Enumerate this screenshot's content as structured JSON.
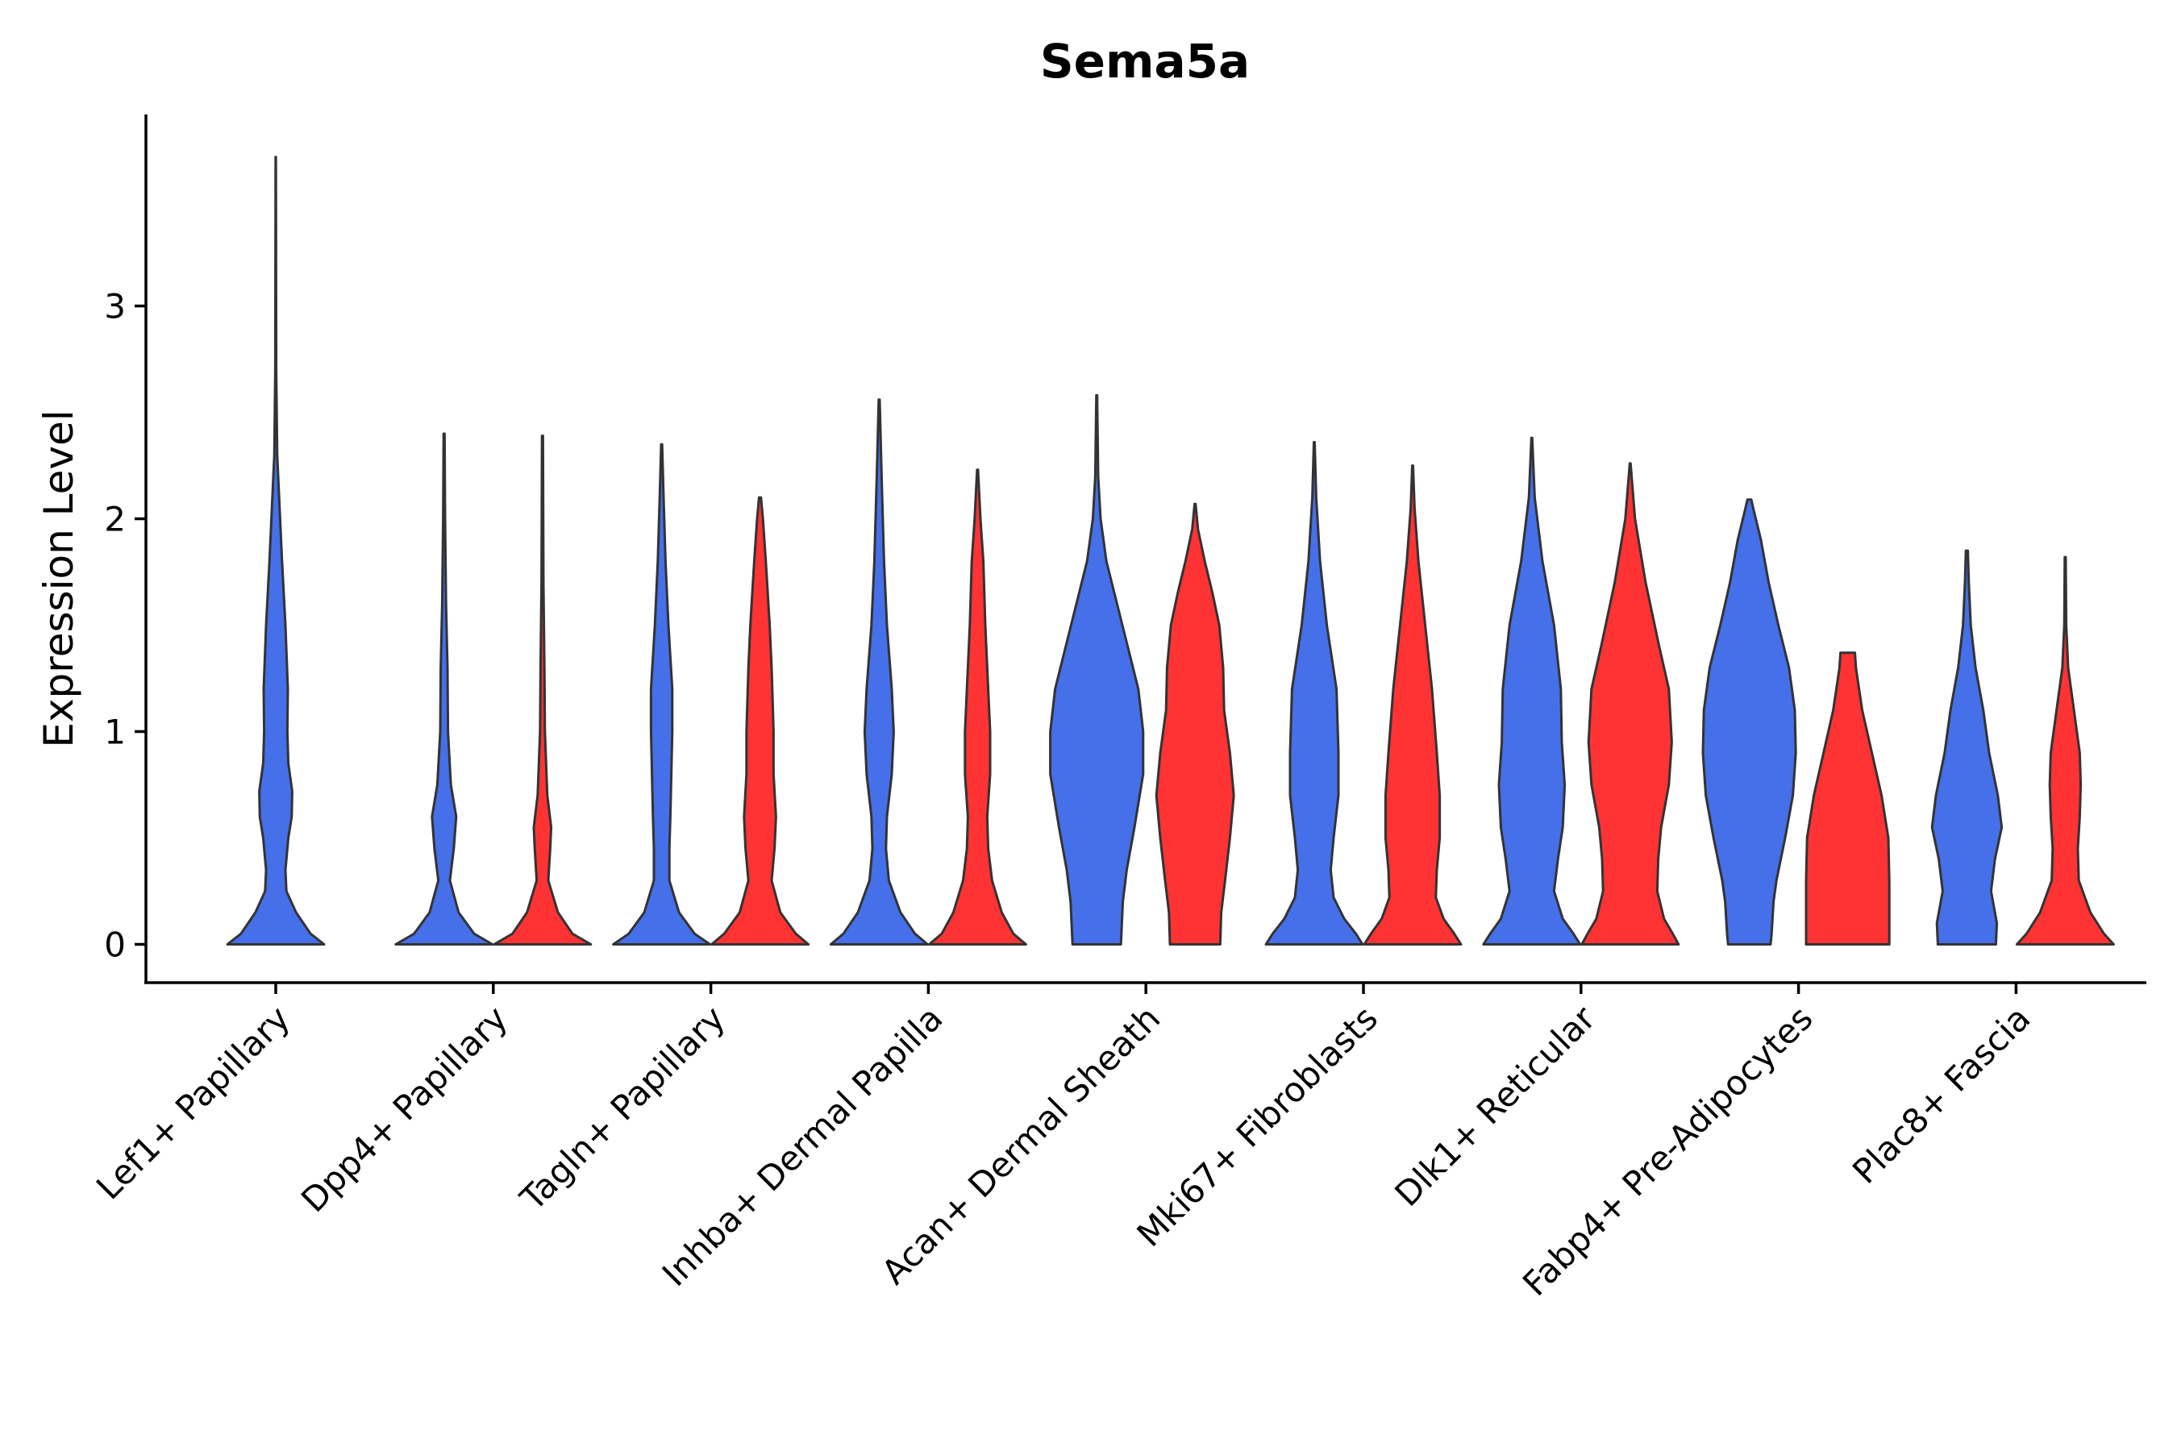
{
  "chart_data": {
    "type": "violin",
    "title": "Sema5a",
    "xlabel": "",
    "ylabel": "Expression Level",
    "ylim": [
      -0.18,
      3.9
    ],
    "yticks": [
      0,
      1,
      2,
      3
    ],
    "colors": {
      "group_a": "#4570EA",
      "group_b": "#FF3333"
    },
    "categories": [
      "Lef1+ Papillary",
      "Dpp4+ Papillary",
      "Tagln+ Papillary",
      "Inhba+ Dermal Papilla",
      "Acan+ Dermal Sheath",
      "Mki67+ Fibroblasts",
      "Dlk1+ Reticular",
      "Fabp4+ Pre-Adipocytes",
      "Plac8+ Fascia"
    ],
    "violins": [
      {
        "name": "Lef1+ Papillary",
        "series": "blue",
        "slot": 0,
        "max": 3.7,
        "profile": [
          [
            0,
            1.0
          ],
          [
            0.05,
            0.72
          ],
          [
            0.15,
            0.42
          ],
          [
            0.25,
            0.22
          ],
          [
            0.35,
            0.2
          ],
          [
            0.5,
            0.26
          ],
          [
            0.6,
            0.33
          ],
          [
            0.72,
            0.34
          ],
          [
            0.85,
            0.26
          ],
          [
            1.0,
            0.24
          ],
          [
            1.2,
            0.25
          ],
          [
            1.5,
            0.2
          ],
          [
            1.8,
            0.13
          ],
          [
            2.1,
            0.07
          ],
          [
            2.3,
            0.03
          ],
          [
            2.7,
            0.01
          ],
          [
            3.7,
            0.004
          ]
        ]
      },
      {
        "name": "Dpp4+ Papillary",
        "series": "blue",
        "slot": 1,
        "max": 2.4,
        "profile": [
          [
            0,
            1.0
          ],
          [
            0.05,
            0.62
          ],
          [
            0.15,
            0.3
          ],
          [
            0.3,
            0.12
          ],
          [
            0.45,
            0.2
          ],
          [
            0.6,
            0.25
          ],
          [
            0.75,
            0.14
          ],
          [
            1.0,
            0.08
          ],
          [
            1.3,
            0.07
          ],
          [
            1.6,
            0.04
          ],
          [
            2.0,
            0.02
          ],
          [
            2.4,
            0.01
          ]
        ]
      },
      {
        "name": "Dpp4+ Papillary",
        "series": "red",
        "slot": 1,
        "max": 2.39,
        "profile": [
          [
            0,
            1.0
          ],
          [
            0.05,
            0.62
          ],
          [
            0.15,
            0.32
          ],
          [
            0.3,
            0.12
          ],
          [
            0.45,
            0.16
          ],
          [
            0.55,
            0.18
          ],
          [
            0.7,
            0.1
          ],
          [
            1.0,
            0.05
          ],
          [
            1.3,
            0.04
          ],
          [
            1.7,
            0.02
          ],
          [
            2.39,
            0.01
          ]
        ]
      },
      {
        "name": "Tagln+ Papillary",
        "series": "blue",
        "slot": 2,
        "max": 2.35,
        "profile": [
          [
            0,
            1.0
          ],
          [
            0.05,
            0.68
          ],
          [
            0.15,
            0.36
          ],
          [
            0.3,
            0.16
          ],
          [
            0.45,
            0.16
          ],
          [
            0.6,
            0.18
          ],
          [
            0.8,
            0.2
          ],
          [
            1.0,
            0.22
          ],
          [
            1.2,
            0.22
          ],
          [
            1.5,
            0.14
          ],
          [
            1.8,
            0.08
          ],
          [
            2.1,
            0.04
          ],
          [
            2.35,
            0.01
          ]
        ]
      },
      {
        "name": "Tagln+ Papillary",
        "series": "red",
        "slot": 2,
        "max": 2.1,
        "profile": [
          [
            0,
            1.0
          ],
          [
            0.05,
            0.74
          ],
          [
            0.15,
            0.42
          ],
          [
            0.3,
            0.24
          ],
          [
            0.45,
            0.3
          ],
          [
            0.6,
            0.33
          ],
          [
            0.8,
            0.28
          ],
          [
            1.0,
            0.28
          ],
          [
            1.3,
            0.24
          ],
          [
            1.5,
            0.2
          ],
          [
            1.8,
            0.12
          ],
          [
            2.0,
            0.06
          ],
          [
            2.1,
            0.02
          ]
        ]
      },
      {
        "name": "Inhba+ Dermal Papilla",
        "series": "blue",
        "slot": 3,
        "max": 2.56,
        "profile": [
          [
            0,
            1.0
          ],
          [
            0.05,
            0.74
          ],
          [
            0.15,
            0.44
          ],
          [
            0.3,
            0.2
          ],
          [
            0.45,
            0.14
          ],
          [
            0.6,
            0.16
          ],
          [
            0.8,
            0.26
          ],
          [
            1.0,
            0.3
          ],
          [
            1.2,
            0.26
          ],
          [
            1.5,
            0.16
          ],
          [
            1.8,
            0.1
          ],
          [
            2.2,
            0.05
          ],
          [
            2.56,
            0.01
          ]
        ]
      },
      {
        "name": "Inhba+ Dermal Papilla",
        "series": "red",
        "slot": 3,
        "max": 2.23,
        "profile": [
          [
            0,
            1.0
          ],
          [
            0.05,
            0.74
          ],
          [
            0.15,
            0.5
          ],
          [
            0.3,
            0.3
          ],
          [
            0.45,
            0.22
          ],
          [
            0.6,
            0.2
          ],
          [
            0.8,
            0.26
          ],
          [
            1.0,
            0.26
          ],
          [
            1.2,
            0.22
          ],
          [
            1.5,
            0.16
          ],
          [
            1.8,
            0.12
          ],
          [
            2.0,
            0.06
          ],
          [
            2.23,
            0.01
          ]
        ]
      },
      {
        "name": "Acan+ Dermal Sheath",
        "series": "blue",
        "slot": 4,
        "max": 2.58,
        "profile": [
          [
            0,
            0.5
          ],
          [
            0.2,
            0.54
          ],
          [
            0.35,
            0.62
          ],
          [
            0.55,
            0.78
          ],
          [
            0.8,
            0.96
          ],
          [
            1.0,
            0.96
          ],
          [
            1.2,
            0.86
          ],
          [
            1.4,
            0.64
          ],
          [
            1.6,
            0.42
          ],
          [
            1.8,
            0.2
          ],
          [
            2.0,
            0.08
          ],
          [
            2.2,
            0.03
          ],
          [
            2.58,
            0.008
          ]
        ]
      },
      {
        "name": "Acan+ Dermal Sheath",
        "series": "red",
        "slot": 4,
        "max": 2.07,
        "profile": [
          [
            0,
            0.52
          ],
          [
            0.15,
            0.54
          ],
          [
            0.3,
            0.62
          ],
          [
            0.5,
            0.72
          ],
          [
            0.7,
            0.8
          ],
          [
            0.9,
            0.72
          ],
          [
            1.1,
            0.6
          ],
          [
            1.3,
            0.58
          ],
          [
            1.5,
            0.5
          ],
          [
            1.65,
            0.36
          ],
          [
            1.8,
            0.2
          ],
          [
            1.95,
            0.06
          ],
          [
            2.07,
            0.01
          ]
        ]
      },
      {
        "name": "Mki67+ Fibroblasts",
        "series": "blue",
        "slot": 5,
        "max": 2.36,
        "profile": [
          [
            0,
            1.0
          ],
          [
            0.05,
            0.86
          ],
          [
            0.12,
            0.62
          ],
          [
            0.22,
            0.4
          ],
          [
            0.35,
            0.34
          ],
          [
            0.5,
            0.4
          ],
          [
            0.7,
            0.5
          ],
          [
            0.9,
            0.5
          ],
          [
            1.2,
            0.46
          ],
          [
            1.5,
            0.26
          ],
          [
            1.8,
            0.12
          ],
          [
            2.1,
            0.04
          ],
          [
            2.36,
            0.008
          ]
        ]
      },
      {
        "name": "Mki67+ Fibroblasts",
        "series": "red",
        "slot": 5,
        "max": 2.25,
        "profile": [
          [
            0,
            1.0
          ],
          [
            0.05,
            0.86
          ],
          [
            0.12,
            0.64
          ],
          [
            0.22,
            0.48
          ],
          [
            0.35,
            0.5
          ],
          [
            0.5,
            0.56
          ],
          [
            0.7,
            0.56
          ],
          [
            0.9,
            0.5
          ],
          [
            1.2,
            0.4
          ],
          [
            1.5,
            0.26
          ],
          [
            1.8,
            0.12
          ],
          [
            2.05,
            0.04
          ],
          [
            2.25,
            0.008
          ]
        ]
      },
      {
        "name": "Dlk1+ Reticular",
        "series": "blue",
        "slot": 6,
        "max": 2.38,
        "profile": [
          [
            0,
            1.0
          ],
          [
            0.05,
            0.86
          ],
          [
            0.12,
            0.64
          ],
          [
            0.25,
            0.46
          ],
          [
            0.4,
            0.54
          ],
          [
            0.55,
            0.64
          ],
          [
            0.75,
            0.68
          ],
          [
            0.95,
            0.62
          ],
          [
            1.2,
            0.6
          ],
          [
            1.5,
            0.46
          ],
          [
            1.8,
            0.22
          ],
          [
            2.1,
            0.06
          ],
          [
            2.38,
            0.008
          ]
        ]
      },
      {
        "name": "Dlk1+ Reticular",
        "series": "red",
        "slot": 6,
        "max": 2.26,
        "profile": [
          [
            0,
            1.0
          ],
          [
            0.05,
            0.88
          ],
          [
            0.12,
            0.7
          ],
          [
            0.25,
            0.56
          ],
          [
            0.4,
            0.58
          ],
          [
            0.55,
            0.64
          ],
          [
            0.75,
            0.8
          ],
          [
            0.95,
            0.86
          ],
          [
            1.2,
            0.8
          ],
          [
            1.4,
            0.6
          ],
          [
            1.7,
            0.32
          ],
          [
            2.0,
            0.1
          ],
          [
            2.26,
            0.008
          ]
        ]
      },
      {
        "name": "Fabp4+ Pre-Adipocytes",
        "series": "blue",
        "slot": 7,
        "max": 2.09,
        "profile": [
          [
            0,
            0.44
          ],
          [
            0.05,
            0.46
          ],
          [
            0.2,
            0.5
          ],
          [
            0.3,
            0.56
          ],
          [
            0.5,
            0.74
          ],
          [
            0.7,
            0.9
          ],
          [
            0.9,
            0.96
          ],
          [
            1.1,
            0.94
          ],
          [
            1.3,
            0.82
          ],
          [
            1.5,
            0.6
          ],
          [
            1.7,
            0.4
          ],
          [
            1.9,
            0.24
          ],
          [
            2.05,
            0.08
          ],
          [
            2.09,
            0.04
          ]
        ]
      },
      {
        "name": "Fabp4+ Pre-Adipocytes",
        "series": "red",
        "slot": 7,
        "max": 1.37,
        "profile": [
          [
            0,
            0.86
          ],
          [
            0.1,
            0.86
          ],
          [
            0.3,
            0.86
          ],
          [
            0.5,
            0.84
          ],
          [
            0.7,
            0.7
          ],
          [
            0.9,
            0.5
          ],
          [
            1.1,
            0.3
          ],
          [
            1.3,
            0.17
          ],
          [
            1.37,
            0.15
          ]
        ]
      },
      {
        "name": "Plac8+ Fascia",
        "series": "blue",
        "slot": 8,
        "max": 1.85,
        "profile": [
          [
            0,
            0.6
          ],
          [
            0.1,
            0.62
          ],
          [
            0.25,
            0.5
          ],
          [
            0.4,
            0.58
          ],
          [
            0.55,
            0.72
          ],
          [
            0.7,
            0.64
          ],
          [
            0.9,
            0.46
          ],
          [
            1.1,
            0.34
          ],
          [
            1.3,
            0.18
          ],
          [
            1.5,
            0.08
          ],
          [
            1.7,
            0.04
          ],
          [
            1.85,
            0.02
          ]
        ]
      },
      {
        "name": "Plac8+ Fascia",
        "series": "red",
        "slot": 8,
        "max": 1.82,
        "profile": [
          [
            0,
            1.0
          ],
          [
            0.05,
            0.8
          ],
          [
            0.15,
            0.52
          ],
          [
            0.3,
            0.28
          ],
          [
            0.45,
            0.26
          ],
          [
            0.6,
            0.3
          ],
          [
            0.75,
            0.32
          ],
          [
            0.9,
            0.3
          ],
          [
            1.1,
            0.18
          ],
          [
            1.3,
            0.06
          ],
          [
            1.5,
            0.02
          ],
          [
            1.82,
            0.01
          ]
        ]
      }
    ]
  }
}
